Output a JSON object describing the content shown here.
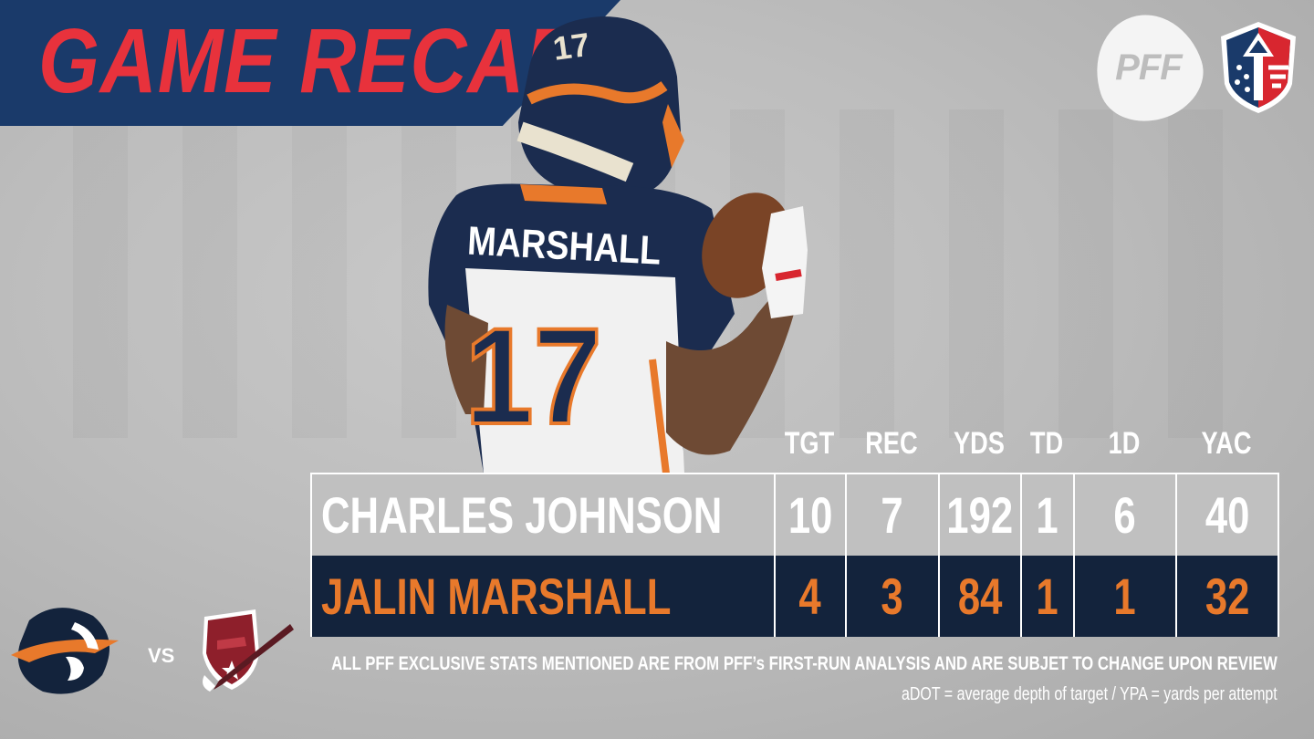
{
  "header": {
    "title": "GAME RECAP"
  },
  "logos": {
    "pff": {
      "text": "PFF",
      "icon": "pff-logo-icon"
    },
    "league": {
      "icon": "aaf-shield-logo-icon"
    }
  },
  "player_image": {
    "jersey_name": "MARSHALL",
    "jersey_number": "17"
  },
  "table": {
    "columns": [
      "TGT",
      "REC",
      "YDS",
      "TD",
      "1D",
      "YAC"
    ],
    "rows": [
      {
        "name": "CHARLES JOHNSON",
        "values": [
          "10",
          "7",
          "192",
          "1",
          "6",
          "40"
        ]
      },
      {
        "name": "JALIN MARSHALL",
        "values": [
          "4",
          "3",
          "84",
          "1",
          "1",
          "32"
        ]
      }
    ]
  },
  "matchup": {
    "team1_icon": "orlando-apollos-logo-icon",
    "vs": "VS",
    "team2_icon": "birmingham-iron-logo-icon"
  },
  "footnotes": {
    "line1": "ALL PFF EXCLUSIVE STATS MENTIONED ARE FROM PFF’s FIRST-RUN ANALYSIS AND ARE SUBJET TO CHANGE UPON REVIEW",
    "line2": "aDOT = average depth of target / YPA = yards per attempt"
  },
  "colors": {
    "banner": "#1a3a6a",
    "title": "#e8323c",
    "highlight_row": "#13233c",
    "highlight_text": "#e8792b"
  }
}
